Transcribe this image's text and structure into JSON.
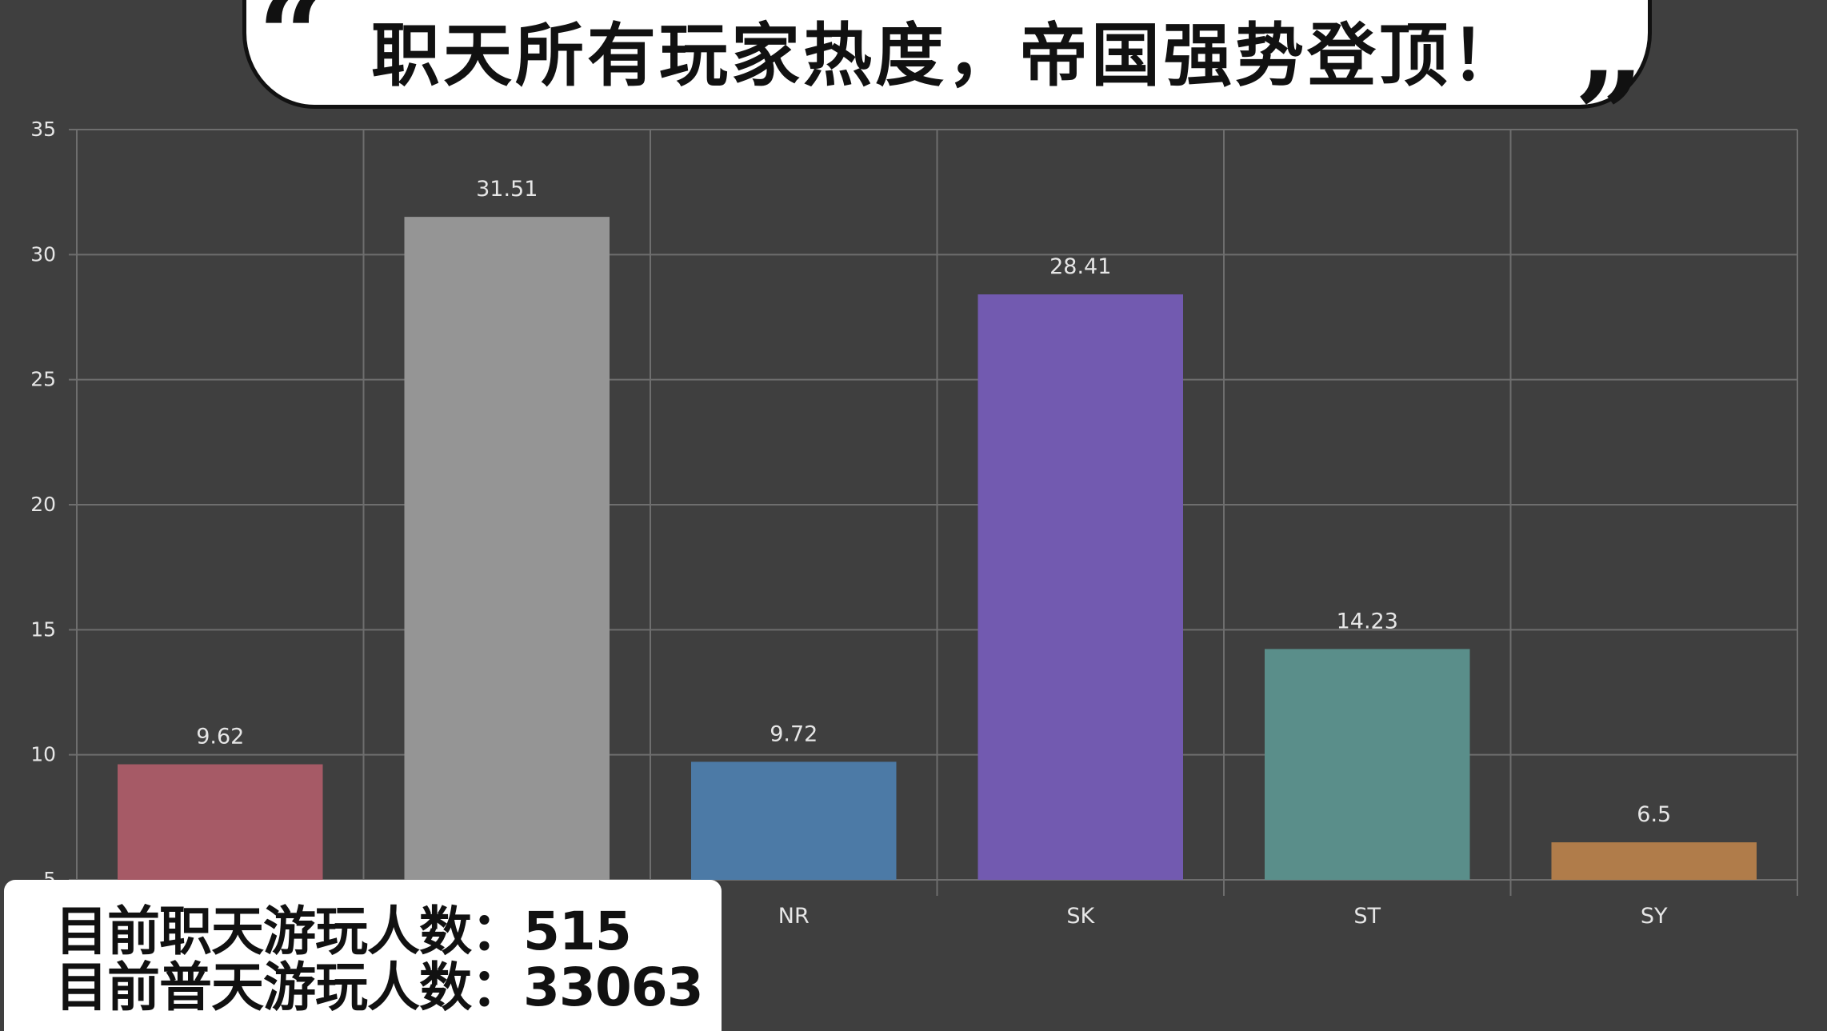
{
  "title": "职天所有玩家热度，帝国强势登顶！",
  "quote_open": "“",
  "quote_close": "”",
  "chart_data": {
    "type": "bar",
    "categories": [
      "",
      "",
      "NR",
      "SK",
      "ST",
      "SY"
    ],
    "values": [
      9.62,
      31.51,
      9.72,
      28.41,
      14.23,
      6.5
    ],
    "value_labels": [
      "9.62",
      "31.51",
      "9.72",
      "28.41",
      "14.23",
      "6.5"
    ],
    "colors": [
      "#a65a66",
      "#959595",
      "#4c7aa6",
      "#725ab0",
      "#5a8e8a",
      "#b07c4a"
    ],
    "y_ticks": [
      "5",
      "10",
      "15",
      "20",
      "25",
      "30",
      "35"
    ],
    "ylim": [
      5,
      35
    ],
    "grid": true
  },
  "info": {
    "line1": "目前职天游玩人数：515",
    "line2": "目前普天游玩人数：33063"
  }
}
